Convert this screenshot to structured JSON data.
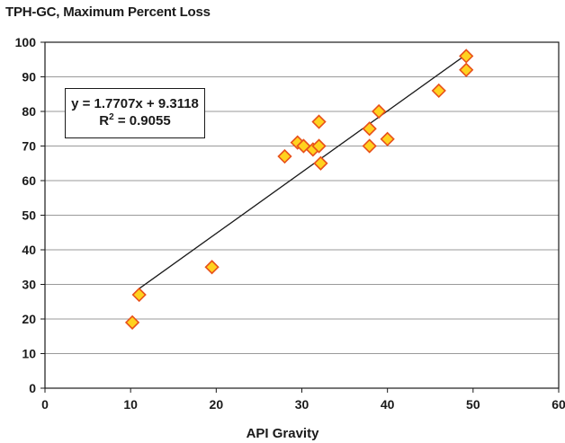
{
  "chart_data": {
    "type": "scatter",
    "title": "TPH-GC, Maximum Percent Loss",
    "xlabel": "API Gravity",
    "ylabel": "",
    "xlim": [
      0,
      60
    ],
    "ylim": [
      0,
      100
    ],
    "x_ticks": [
      "0",
      "10",
      "20",
      "30",
      "40",
      "50",
      "60"
    ],
    "y_ticks": [
      "0",
      "10",
      "20",
      "30",
      "40",
      "50",
      "60",
      "70",
      "80",
      "90",
      "100"
    ],
    "grid": "horizontal",
    "points": [
      {
        "x": 10.2,
        "y": 19
      },
      {
        "x": 11.0,
        "y": 27
      },
      {
        "x": 19.5,
        "y": 35
      },
      {
        "x": 28.0,
        "y": 67
      },
      {
        "x": 29.5,
        "y": 71
      },
      {
        "x": 30.2,
        "y": 70
      },
      {
        "x": 31.3,
        "y": 69
      },
      {
        "x": 32.0,
        "y": 77
      },
      {
        "x": 32.0,
        "y": 70
      },
      {
        "x": 32.2,
        "y": 65
      },
      {
        "x": 37.9,
        "y": 75
      },
      {
        "x": 37.9,
        "y": 70
      },
      {
        "x": 39.0,
        "y": 80
      },
      {
        "x": 40.0,
        "y": 72
      },
      {
        "x": 46.0,
        "y": 86
      },
      {
        "x": 49.2,
        "y": 96
      },
      {
        "x": 49.2,
        "y": 92
      }
    ],
    "trendline": {
      "slope": 1.7707,
      "intercept": 9.3118,
      "x_range": [
        11.0,
        49.2
      ]
    },
    "equation_line1": "y = 1.7707x + 9.3118",
    "r2_prefix": "R",
    "r2_sup": "2",
    "r2_suffix": " = 0.9055",
    "marker_fill": "#ffd21f",
    "marker_stroke": "#e8501a"
  }
}
